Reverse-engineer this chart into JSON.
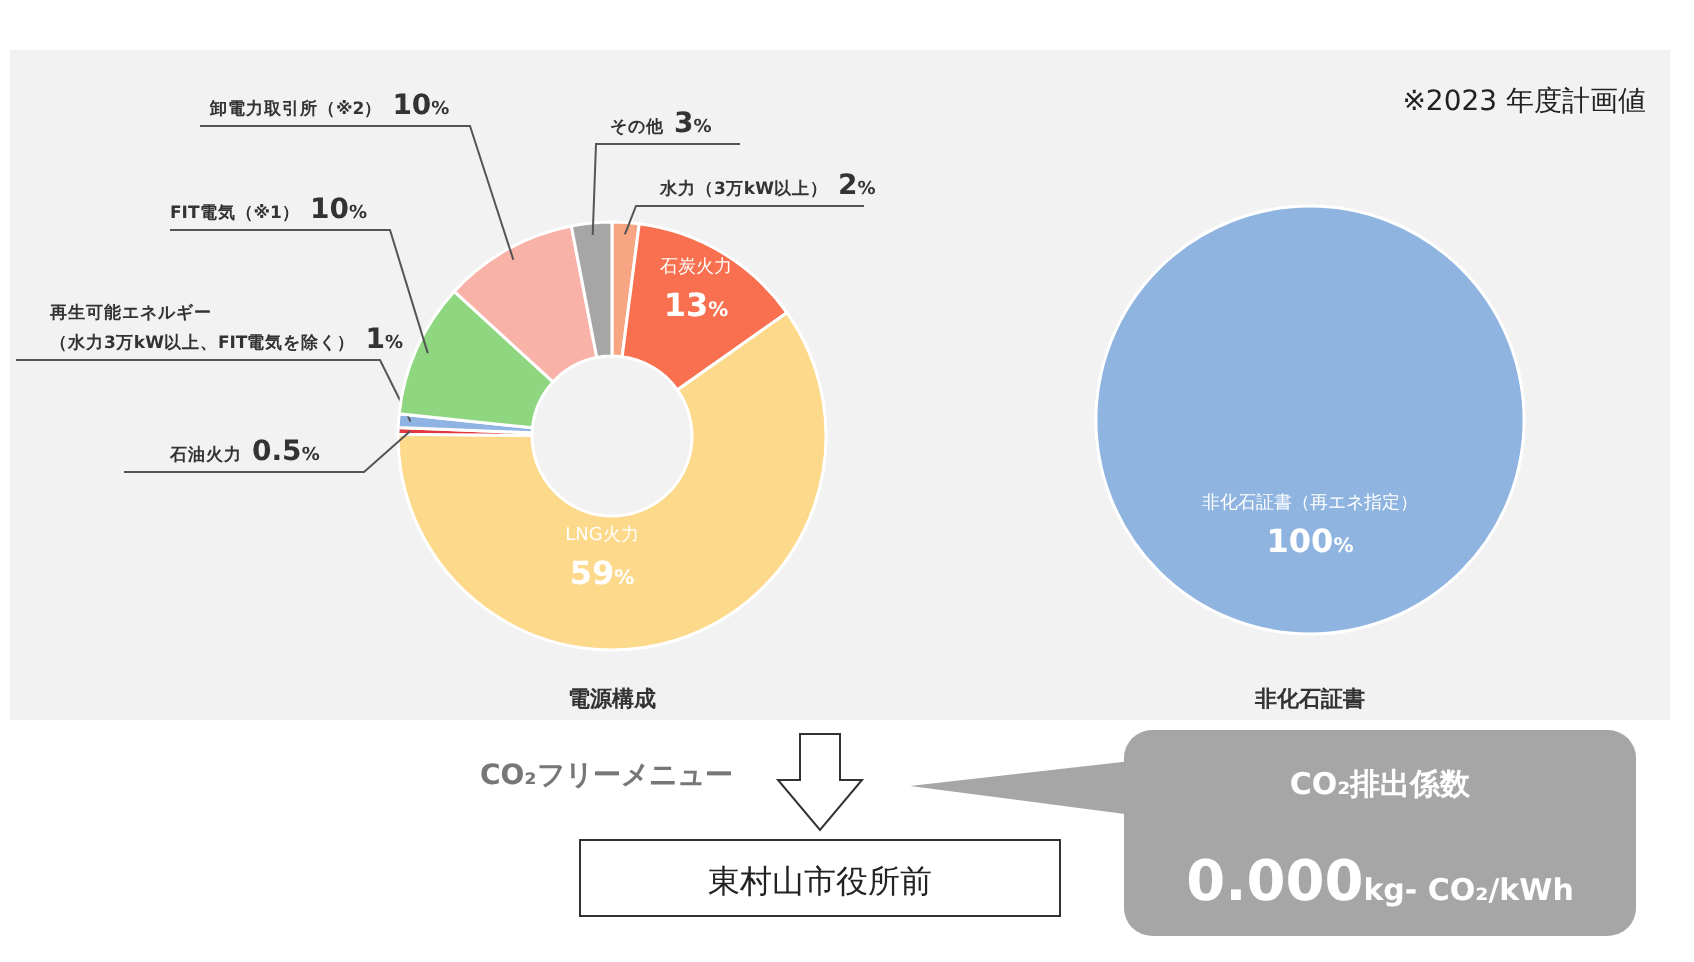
{
  "chart_data": [
    {
      "type": "donut",
      "title": "電源構成",
      "annotations": [
        "※2023 年度計画値"
      ],
      "categories": [
        "水力（3万kW以上）",
        "石炭火力",
        "LNG火力",
        "石油火力",
        "再生可能エネルギー（水力3万kW以上、FIT電気を除く）",
        "FIT電気（※1）",
        "卸電力取引所（※2）",
        "その他"
      ],
      "values": [
        2,
        13,
        59,
        0.5,
        1,
        10,
        10,
        3
      ],
      "colors": [
        "#f7a583",
        "#f8704f",
        "#fdd98b",
        "#e0383f",
        "#8fb4e3",
        "#8ed780",
        "#f9b2a8",
        "#a6a6a6"
      ],
      "value_labels": [
        "2%",
        "13%",
        "59%",
        "0.5%",
        "1%",
        "10%",
        "10%",
        "3%"
      ]
    },
    {
      "type": "pie",
      "title": "非化石証書",
      "categories": [
        "非化石証書（再エネ指定）"
      ],
      "values": [
        100
      ],
      "colors": [
        "#8fb4e0"
      ],
      "value_labels": [
        "100%"
      ]
    },
    {
      "type": "other",
      "annotations": [
        "CO₂フリーメニュー",
        "東村山市役所前",
        "CO₂排出係数",
        "0.000kg- CO₂/kWh"
      ]
    }
  ]
}
